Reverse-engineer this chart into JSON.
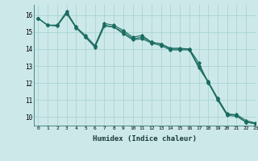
{
  "xlabel": "Humidex (Indice chaleur)",
  "ylabel": "",
  "bg_color": "#cce8e8",
  "line_color": "#1a6b60",
  "grid_color": "#aad4d4",
  "xlim": [
    -0.5,
    23
  ],
  "ylim": [
    9.5,
    16.6
  ],
  "xticks": [
    0,
    1,
    2,
    3,
    4,
    5,
    6,
    7,
    8,
    9,
    10,
    11,
    12,
    13,
    14,
    15,
    16,
    17,
    18,
    19,
    20,
    21,
    22,
    23
  ],
  "yticks": [
    10,
    11,
    12,
    13,
    14,
    15,
    16
  ],
  "series": [
    [
      15.8,
      15.4,
      15.4,
      16.1,
      15.3,
      14.7,
      14.2,
      15.4,
      15.3,
      15.0,
      14.6,
      14.7,
      14.4,
      14.3,
      14.0,
      14.0,
      14.0,
      13.0,
      12.1,
      11.1,
      10.2,
      10.1,
      9.7,
      9.65
    ],
    [
      15.8,
      15.4,
      15.4,
      16.2,
      15.3,
      14.8,
      14.2,
      15.5,
      15.4,
      15.1,
      14.7,
      14.8,
      14.4,
      14.3,
      14.05,
      14.05,
      14.0,
      13.2,
      12.0,
      11.1,
      10.15,
      10.15,
      9.8,
      9.65
    ],
    [
      15.8,
      15.4,
      15.35,
      16.1,
      15.25,
      14.7,
      14.1,
      15.35,
      15.3,
      14.9,
      14.55,
      14.6,
      14.35,
      14.2,
      13.95,
      13.95,
      13.95,
      12.9,
      12.05,
      11.0,
      10.1,
      10.05,
      9.7,
      9.6
    ]
  ]
}
